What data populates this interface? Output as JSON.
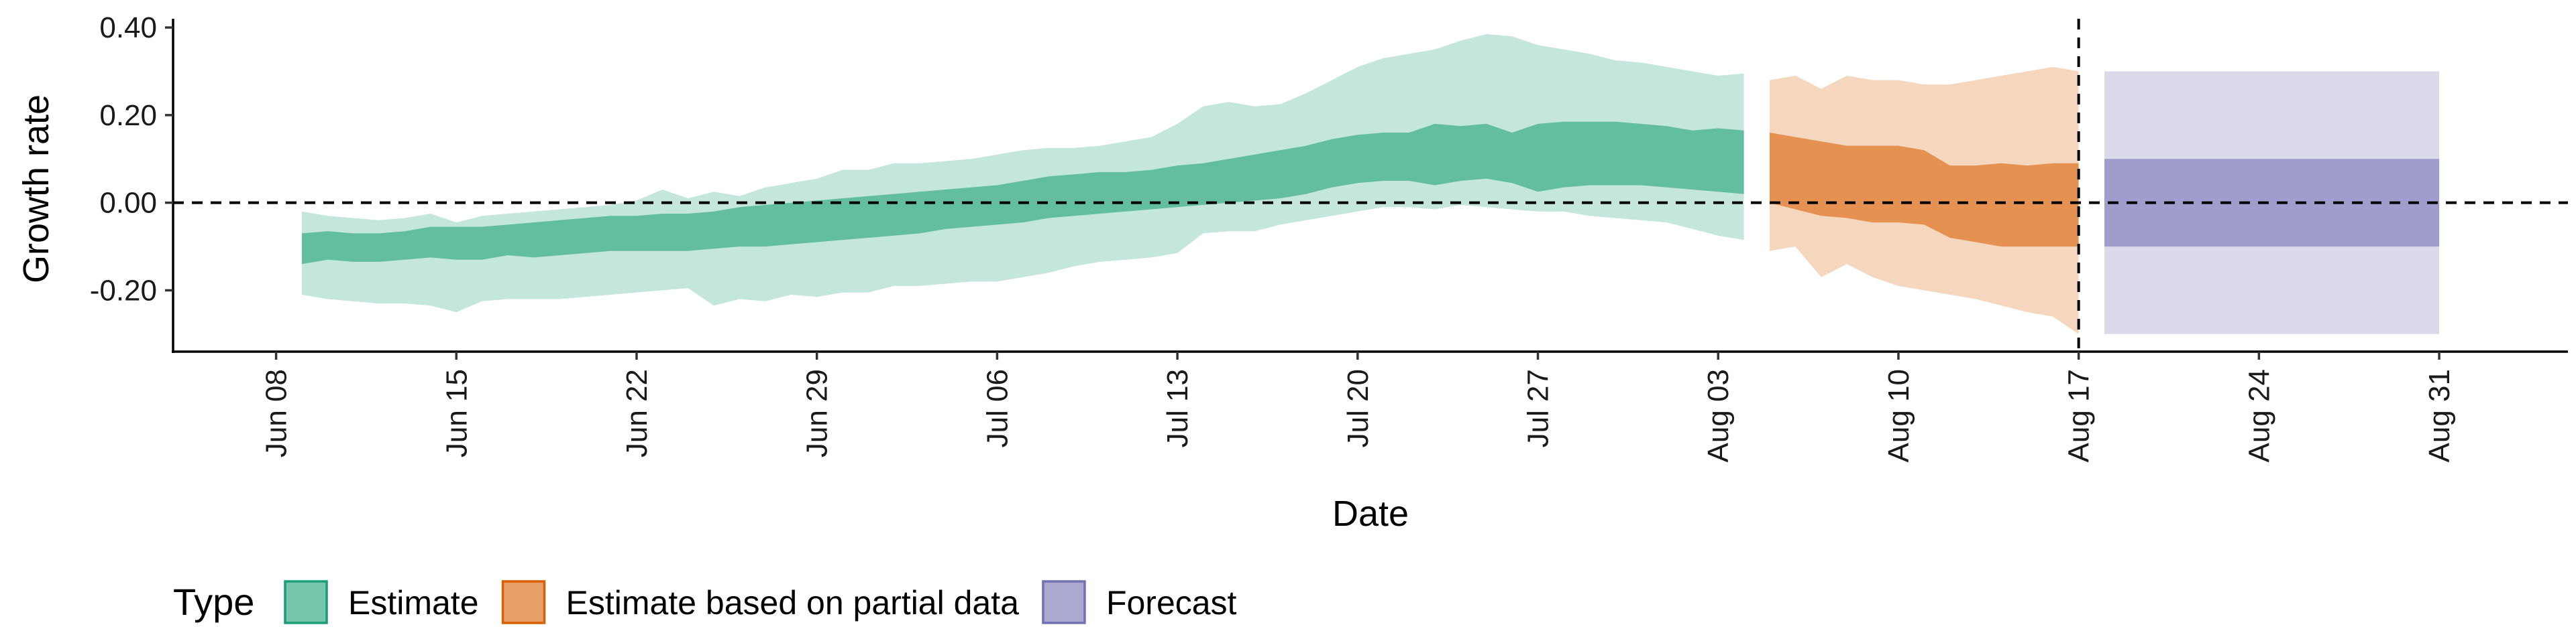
{
  "chart_data": {
    "type": "area",
    "title": "",
    "xlabel": "Date",
    "ylabel": "Growth rate",
    "x_axis": {
      "type": "date",
      "range": [
        "2020-06-04",
        "2020-09-05"
      ],
      "ticks": [
        "2020-06-08",
        "2020-06-15",
        "2020-06-22",
        "2020-06-29",
        "2020-07-06",
        "2020-07-13",
        "2020-07-20",
        "2020-07-27",
        "2020-08-03",
        "2020-08-10",
        "2020-08-17",
        "2020-08-24",
        "2020-08-31"
      ],
      "tick_labels": [
        "Jun 08",
        "Jun 15",
        "Jun 22",
        "Jun 29",
        "Jul 06",
        "Jul 13",
        "Jul 20",
        "Jul 27",
        "Aug 03",
        "Aug 10",
        "Aug 17",
        "Aug 24",
        "Aug 31"
      ]
    },
    "y_axis": {
      "range": [
        -0.34,
        0.42
      ],
      "ticks": [
        -0.2,
        0.0,
        0.2,
        0.4
      ],
      "tick_labels": [
        "-0.20",
        "0.00",
        "0.20",
        "0.40"
      ]
    },
    "reference_lines": [
      {
        "axis": "y",
        "value": 0.0,
        "style": "dashed"
      },
      {
        "axis": "x",
        "value": "2020-08-17",
        "style": "dashed"
      }
    ],
    "legend": {
      "title": "Type",
      "position": "bottom",
      "entries": [
        {
          "label": "Estimate",
          "color": "#1b9e77"
        },
        {
          "label": "Estimate based on partial data",
          "color": "#d95f02"
        },
        {
          "label": "Forecast",
          "color": "#7570b3"
        }
      ]
    },
    "series": [
      {
        "name": "Estimate",
        "color": "#1b9e77",
        "x": [
          "2020-06-09",
          "2020-06-10",
          "2020-06-11",
          "2020-06-12",
          "2020-06-13",
          "2020-06-14",
          "2020-06-15",
          "2020-06-16",
          "2020-06-17",
          "2020-06-18",
          "2020-06-19",
          "2020-06-20",
          "2020-06-21",
          "2020-06-22",
          "2020-06-23",
          "2020-06-24",
          "2020-06-25",
          "2020-06-26",
          "2020-06-27",
          "2020-06-28",
          "2020-06-29",
          "2020-06-30",
          "2020-07-01",
          "2020-07-02",
          "2020-07-03",
          "2020-07-04",
          "2020-07-05",
          "2020-07-06",
          "2020-07-07",
          "2020-07-08",
          "2020-07-09",
          "2020-07-10",
          "2020-07-11",
          "2020-07-12",
          "2020-07-13",
          "2020-07-14",
          "2020-07-15",
          "2020-07-16",
          "2020-07-17",
          "2020-07-18",
          "2020-07-19",
          "2020-07-20",
          "2020-07-21",
          "2020-07-22",
          "2020-07-23",
          "2020-07-24",
          "2020-07-25",
          "2020-07-26",
          "2020-07-27",
          "2020-07-28",
          "2020-07-29",
          "2020-07-30",
          "2020-07-31",
          "2020-08-01",
          "2020-08-02",
          "2020-08-03",
          "2020-08-04"
        ],
        "lower_90": [
          -0.21,
          -0.22,
          -0.225,
          -0.23,
          -0.23,
          -0.235,
          -0.25,
          -0.225,
          -0.22,
          -0.22,
          -0.22,
          -0.215,
          -0.21,
          -0.205,
          -0.2,
          -0.195,
          -0.235,
          -0.22,
          -0.225,
          -0.21,
          -0.215,
          -0.205,
          -0.205,
          -0.19,
          -0.19,
          -0.185,
          -0.18,
          -0.18,
          -0.17,
          -0.16,
          -0.145,
          -0.135,
          -0.13,
          -0.125,
          -0.115,
          -0.07,
          -0.065,
          -0.065,
          -0.05,
          -0.04,
          -0.03,
          -0.02,
          -0.01,
          -0.01,
          -0.015,
          -0.005,
          -0.01,
          -0.015,
          -0.02,
          -0.02,
          -0.03,
          -0.035,
          -0.04,
          -0.045,
          -0.06,
          -0.075,
          -0.085
        ],
        "lower_50": [
          -0.14,
          -0.13,
          -0.135,
          -0.135,
          -0.13,
          -0.125,
          -0.13,
          -0.13,
          -0.12,
          -0.125,
          -0.12,
          -0.115,
          -0.11,
          -0.11,
          -0.11,
          -0.11,
          -0.105,
          -0.1,
          -0.1,
          -0.095,
          -0.09,
          -0.085,
          -0.08,
          -0.075,
          -0.07,
          -0.06,
          -0.055,
          -0.05,
          -0.045,
          -0.035,
          -0.03,
          -0.025,
          -0.02,
          -0.015,
          -0.01,
          -0.005,
          0.0,
          0.005,
          0.01,
          0.02,
          0.035,
          0.045,
          0.05,
          0.05,
          0.04,
          0.05,
          0.055,
          0.045,
          0.025,
          0.035,
          0.04,
          0.04,
          0.04,
          0.035,
          0.03,
          0.025,
          0.02
        ],
        "upper_50": [
          -0.07,
          -0.065,
          -0.07,
          -0.07,
          -0.065,
          -0.055,
          -0.055,
          -0.055,
          -0.05,
          -0.045,
          -0.04,
          -0.035,
          -0.03,
          -0.03,
          -0.025,
          -0.025,
          -0.02,
          -0.01,
          -0.005,
          0.0,
          0.005,
          0.01,
          0.015,
          0.02,
          0.025,
          0.03,
          0.035,
          0.04,
          0.05,
          0.06,
          0.065,
          0.07,
          0.07,
          0.075,
          0.085,
          0.09,
          0.1,
          0.11,
          0.12,
          0.13,
          0.145,
          0.155,
          0.16,
          0.16,
          0.18,
          0.175,
          0.18,
          0.16,
          0.18,
          0.185,
          0.185,
          0.185,
          0.18,
          0.175,
          0.165,
          0.17,
          0.165
        ],
        "upper_90": [
          -0.02,
          -0.03,
          -0.035,
          -0.04,
          -0.035,
          -0.025,
          -0.045,
          -0.03,
          -0.025,
          -0.02,
          -0.015,
          -0.01,
          -0.005,
          0.005,
          0.03,
          0.01,
          0.025,
          0.015,
          0.035,
          0.045,
          0.055,
          0.075,
          0.075,
          0.09,
          0.09,
          0.095,
          0.1,
          0.11,
          0.12,
          0.125,
          0.125,
          0.13,
          0.14,
          0.15,
          0.18,
          0.22,
          0.23,
          0.22,
          0.225,
          0.25,
          0.28,
          0.31,
          0.33,
          0.34,
          0.35,
          0.37,
          0.385,
          0.38,
          0.36,
          0.35,
          0.34,
          0.325,
          0.32,
          0.31,
          0.3,
          0.29,
          0.295
        ]
      },
      {
        "name": "Estimate based on partial data",
        "color": "#d95f02",
        "x": [
          "2020-08-05",
          "2020-08-06",
          "2020-08-07",
          "2020-08-08",
          "2020-08-09",
          "2020-08-10",
          "2020-08-11",
          "2020-08-12",
          "2020-08-13",
          "2020-08-14",
          "2020-08-15",
          "2020-08-16",
          "2020-08-17"
        ],
        "lower_90": [
          -0.11,
          -0.1,
          -0.17,
          -0.14,
          -0.17,
          -0.19,
          -0.2,
          -0.21,
          -0.22,
          -0.235,
          -0.25,
          -0.26,
          -0.3
        ],
        "lower_50": [
          0.0,
          -0.015,
          -0.03,
          -0.035,
          -0.045,
          -0.045,
          -0.05,
          -0.08,
          -0.09,
          -0.1,
          -0.1,
          -0.1,
          -0.1
        ],
        "upper_50": [
          0.16,
          0.15,
          0.14,
          0.13,
          0.13,
          0.13,
          0.12,
          0.085,
          0.085,
          0.09,
          0.085,
          0.09,
          0.09
        ],
        "upper_90": [
          0.28,
          0.29,
          0.26,
          0.29,
          0.28,
          0.28,
          0.27,
          0.27,
          0.28,
          0.29,
          0.3,
          0.31,
          0.3
        ]
      },
      {
        "name": "Forecast",
        "color": "#7570b3",
        "x": [
          "2020-08-18",
          "2020-08-31"
        ],
        "lower_90": [
          -0.3,
          -0.3
        ],
        "lower_50": [
          -0.1,
          -0.1
        ],
        "upper_50": [
          0.1,
          0.1
        ],
        "upper_90": [
          0.3,
          0.3
        ]
      }
    ]
  }
}
